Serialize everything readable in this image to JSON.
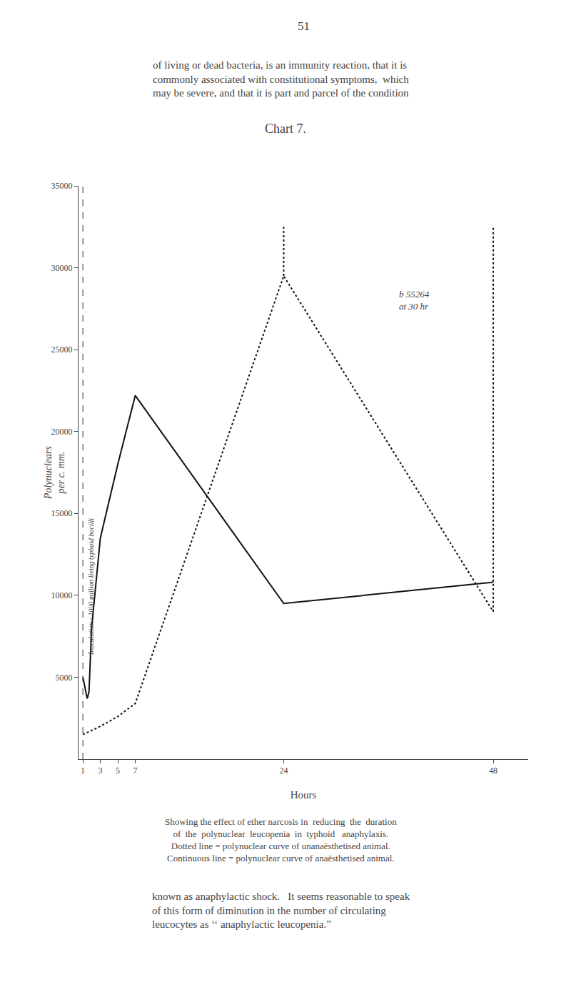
{
  "chart_data": {
    "type": "line",
    "title": "Chart 7.",
    "xlabel": "Hours",
    "ylabel": "Polynuclears\nper c. mm.",
    "xlim": [
      0.5,
      52
    ],
    "xticks": [
      1,
      3,
      5,
      7,
      24,
      48
    ],
    "ylim": [
      0,
      35000
    ],
    "yticks": [
      5000,
      10000,
      15000,
      20000,
      25000,
      30000,
      35000
    ],
    "grid": false,
    "series": [
      {
        "x": [
          1.0,
          1.3,
          1.5,
          1.7,
          2.0,
          3.0,
          5.0,
          7.0,
          24.0,
          48.0
        ],
        "values": [
          5000,
          4200,
          3700,
          4100,
          8000,
          13500,
          18000,
          22200,
          9500,
          10800
        ],
        "color": "#111111",
        "line_style": "solid"
      },
      {
        "x": [
          1.0,
          3.0,
          5.0,
          7.0,
          24.0,
          48.0
        ],
        "values": [
          1500,
          2000,
          2600,
          3400,
          29500,
          9000
        ],
        "color": "#111111",
        "line_style": "dotted"
      },
      {
        "x": [
          48.0,
          48.0
        ],
        "values": [
          9000,
          32500
        ],
        "color": "#111111",
        "line_style": "dotted"
      },
      {
        "x": [
          24.0,
          24.0
        ],
        "values": [
          29500,
          32500
        ],
        "color": "#111111",
        "line_style": "dotted"
      }
    ],
    "annotations": [
      {
        "x": 37,
        "y": 28000,
        "text": "b 55264\nat 30 hr"
      }
    ],
    "reference_lines": [
      {
        "x": 1.0,
        "line_style": "dashed",
        "text": "Inoculation : 1000 million living typhoid bacilli"
      }
    ],
    "page_number": "51",
    "text_above": [
      "of living or dead bacteria, is an immunity reaction, that it is",
      "commonly associated with constitutional symptoms,  which",
      "may be severe, and that it is part and parcel of the condition"
    ],
    "caption": [
      "Showing the effect of ether narcosis in  reducing  the  duration",
      "of  the  polynuclear  leucopenia  in  typhoid   anaphylaxis.",
      "Dotted line = polynuclear curve of unanaësthetised animal.",
      "Continuous line = polynuclear curve of anaësthetised animal."
    ],
    "text_below": [
      "known as anaphylactic shock.   It seems reasonable to speak",
      "of this form of diminution in the number of circulating",
      "leucocytes as ‘‘ anaphylactic leucopenia.”"
    ]
  }
}
